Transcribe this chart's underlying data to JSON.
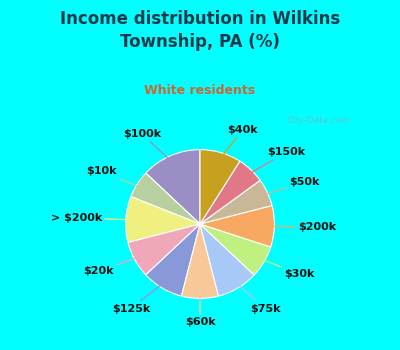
{
  "title": "Income distribution in Wilkins\nTownship, PA (%)",
  "subtitle": "White residents",
  "bg_cyan": "#00ffff",
  "chart_bg": "#e0f0e8",
  "labels": [
    "$100k",
    "$10k",
    "> $200k",
    "$20k",
    "$125k",
    "$60k",
    "$75k",
    "$30k",
    "$200k",
    "$50k",
    "$150k",
    "$40k"
  ],
  "values": [
    13,
    6,
    10,
    8,
    9,
    8,
    9,
    7,
    9,
    6,
    6,
    9
  ],
  "colors": [
    "#9b8ec4",
    "#b8d0a0",
    "#f0f080",
    "#f0a8b8",
    "#8898d8",
    "#f8c898",
    "#a8c8f8",
    "#c0f080",
    "#f8a860",
    "#c8b898",
    "#e07888",
    "#c8a020"
  ],
  "startangle": 90,
  "title_color": "#1a3a4a",
  "subtitle_color": "#cc6633",
  "watermark": "City-Data.com",
  "title_fontsize": 12,
  "subtitle_fontsize": 9,
  "label_fontsize": 8
}
